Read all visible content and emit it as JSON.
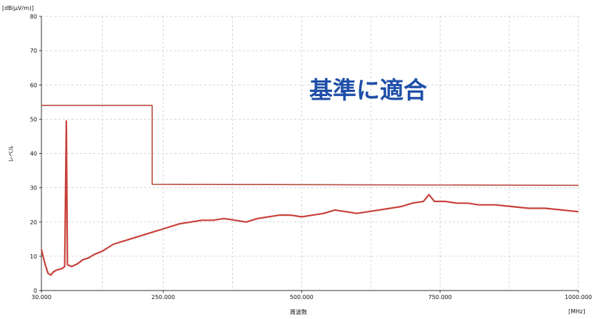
{
  "chart_data": {
    "type": "line",
    "y_unit_label": "[dB(μV/m)]",
    "x_unit_label": "[MHz]",
    "xlabel": "周波数",
    "ylabel": "レベル",
    "annotation": "基準に適合",
    "xlim": [
      30,
      1000
    ],
    "ylim": [
      0,
      80
    ],
    "x_tick_labels": [
      "30.000",
      "250.000",
      "500.000",
      "750.000",
      "1000.000"
    ],
    "x_tick_values": [
      30,
      250,
      500,
      750,
      1000
    ],
    "y_tick_labels": [
      "0",
      "10",
      "20",
      "30",
      "40",
      "50",
      "60",
      "70",
      "80"
    ],
    "y_tick_values": [
      0,
      10,
      20,
      30,
      40,
      50,
      60,
      70,
      80
    ],
    "grid": true,
    "series": [
      {
        "role": "limit",
        "color": "#b84a3e",
        "points": [
          [
            30,
            54
          ],
          [
            230,
            54
          ],
          [
            230,
            31
          ],
          [
            1000,
            30.7
          ]
        ]
      },
      {
        "role": "measurement",
        "color": "#c8403a",
        "points": [
          [
            30,
            12
          ],
          [
            33,
            10
          ],
          [
            37,
            7.5
          ],
          [
            42,
            5
          ],
          [
            47,
            4.5
          ],
          [
            52,
            5.5
          ],
          [
            58,
            6
          ],
          [
            63,
            6.2
          ],
          [
            68,
            6.5
          ],
          [
            72,
            7
          ],
          [
            75,
            49.5
          ],
          [
            77,
            7.5
          ],
          [
            85,
            7
          ],
          [
            95,
            7.8
          ],
          [
            105,
            9
          ],
          [
            115,
            9.5
          ],
          [
            125,
            10.5
          ],
          [
            140,
            11.5
          ],
          [
            160,
            13.5
          ],
          [
            180,
            14.5
          ],
          [
            200,
            15.5
          ],
          [
            220,
            16.5
          ],
          [
            240,
            17.5
          ],
          [
            260,
            18.5
          ],
          [
            280,
            19.5
          ],
          [
            300,
            20
          ],
          [
            320,
            20.5
          ],
          [
            340,
            20.5
          ],
          [
            360,
            21
          ],
          [
            380,
            20.5
          ],
          [
            400,
            20
          ],
          [
            420,
            21
          ],
          [
            440,
            21.5
          ],
          [
            460,
            22
          ],
          [
            480,
            22
          ],
          [
            500,
            21.5
          ],
          [
            520,
            22
          ],
          [
            540,
            22.5
          ],
          [
            560,
            23.5
          ],
          [
            580,
            23
          ],
          [
            600,
            22.5
          ],
          [
            620,
            23
          ],
          [
            640,
            23.5
          ],
          [
            660,
            24
          ],
          [
            680,
            24.5
          ],
          [
            700,
            25.5
          ],
          [
            720,
            26
          ],
          [
            730,
            28
          ],
          [
            740,
            26
          ],
          [
            760,
            26
          ],
          [
            780,
            25.5
          ],
          [
            800,
            25.5
          ],
          [
            820,
            25
          ],
          [
            850,
            25
          ],
          [
            880,
            24.5
          ],
          [
            910,
            24
          ],
          [
            940,
            24
          ],
          [
            970,
            23.5
          ],
          [
            1000,
            23
          ]
        ]
      }
    ]
  }
}
